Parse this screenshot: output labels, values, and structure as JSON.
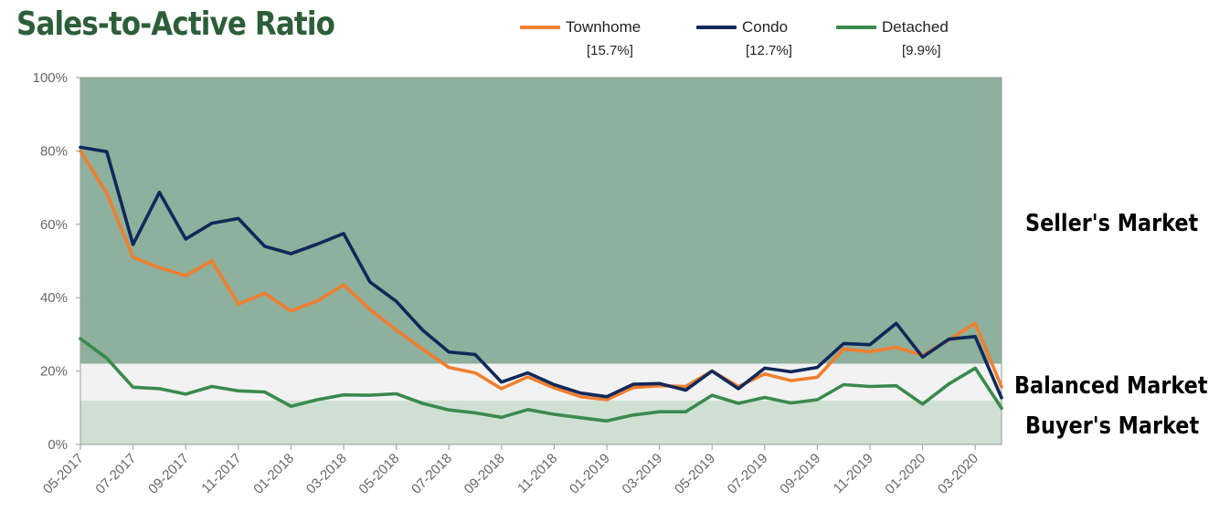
{
  "chart_data": {
    "type": "line",
    "title": "Sales-to-Active Ratio",
    "x": [
      "05-2017",
      "06-2017",
      "07-2017",
      "08-2017",
      "09-2017",
      "10-2017",
      "11-2017",
      "12-2017",
      "01-2018",
      "02-2018",
      "03-2018",
      "04-2018",
      "05-2018",
      "06-2018",
      "07-2018",
      "08-2018",
      "09-2018",
      "10-2018",
      "11-2018",
      "12-2018",
      "01-2019",
      "02-2019",
      "03-2019",
      "04-2019",
      "05-2019",
      "06-2019",
      "07-2019",
      "08-2019",
      "09-2019",
      "10-2019",
      "11-2019",
      "12-2019",
      "01-2020",
      "02-2020",
      "03-2020",
      "04-2020"
    ],
    "x_tick_labels": [
      "05-2017",
      "07-2017",
      "09-2017",
      "11-2017",
      "01-2018",
      "03-2018",
      "05-2018",
      "07-2018",
      "09-2018",
      "11-2018",
      "01-2019",
      "03-2019",
      "05-2019",
      "07-2019",
      "09-2019",
      "11-2019",
      "01-2020",
      "03-2020"
    ],
    "y_tick_labels": [
      "0%",
      "20%",
      "40%",
      "60%",
      "80%",
      "100%"
    ],
    "ylim": [
      0,
      100
    ],
    "series": [
      {
        "name": "Townhome",
        "color": "#f07f30",
        "latest": "[15.7%]",
        "values": [
          80,
          68.5,
          51,
          48.2,
          46,
          50,
          38.2,
          41.2,
          36.4,
          39.1,
          43.5,
          36.8,
          31.2,
          26,
          21,
          19.5,
          15.2,
          18.4,
          15.4,
          13,
          12.2,
          15.5,
          16,
          15.8,
          20,
          15.8,
          19.2,
          17.4,
          18.3,
          26,
          25.3,
          26.5,
          24.3,
          28.5,
          33,
          15.7
        ]
      },
      {
        "name": "Condo",
        "color": "#10285a",
        "latest": "[12.7%]",
        "values": [
          81,
          79.8,
          54.5,
          68.7,
          56,
          60.3,
          61.6,
          54,
          52,
          54.6,
          57.5,
          44.3,
          39,
          31.2,
          25.2,
          24.5,
          17,
          19.5,
          16.3,
          14,
          13,
          16.4,
          16.6,
          14.8,
          20,
          15.2,
          20.8,
          19.8,
          21,
          27.5,
          27.2,
          33,
          23.8,
          28.7,
          29.4,
          12.7
        ]
      },
      {
        "name": "Detached",
        "color": "#3a8a4e",
        "latest": "[9.9%]",
        "values": [
          28.8,
          23.5,
          15.6,
          15.2,
          13.7,
          15.8,
          14.6,
          14.3,
          10.4,
          12.2,
          13.5,
          13.4,
          13.8,
          11.2,
          9.4,
          8.6,
          7.4,
          9.5,
          8.2,
          7.3,
          6.4,
          8,
          8.9,
          8.9,
          13.4,
          11.2,
          12.8,
          11.3,
          12.2,
          16.3,
          15.8,
          16,
          11,
          16.5,
          20.8,
          9.9
        ]
      }
    ],
    "bands": [
      {
        "label": "Seller's Market",
        "from": 22,
        "to": 100,
        "color": "#8eb09c"
      },
      {
        "label": "Balanced Market",
        "from": 12,
        "to": 22,
        "color": "#f2f2f2"
      },
      {
        "label": "Buyer's Market",
        "from": 0,
        "to": 12,
        "color": "#cfe0d3"
      }
    ],
    "grid": false,
    "legend": "top"
  }
}
